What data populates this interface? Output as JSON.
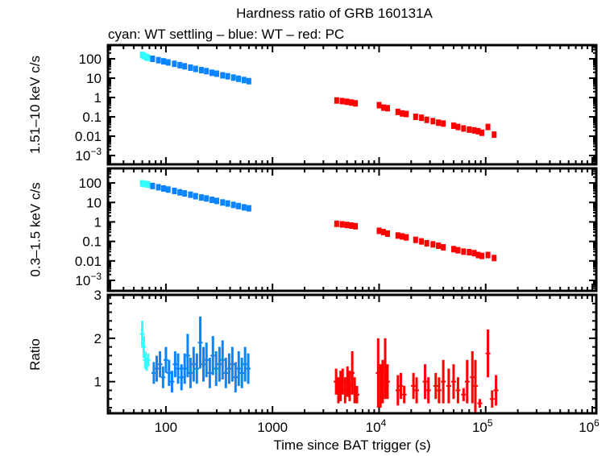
{
  "chart_data": {
    "type": "scatter",
    "title": "Hardness ratio of GRB 160131A",
    "subtitle": "cyan: WT settling – blue: WT – red: PC",
    "xlabel": "Time since BAT trigger (s)",
    "xscale": "log",
    "xlim": [
      28.6,
      1090000
    ],
    "x_tick_labels": [
      {
        "value": 100,
        "base": "100",
        "exp": ""
      },
      {
        "value": 1000,
        "base": "1000",
        "exp": ""
      },
      {
        "value": 10000,
        "base": "10",
        "exp": "4"
      },
      {
        "value": 100000,
        "base": "10",
        "exp": "5"
      },
      {
        "value": 1000000,
        "base": "10",
        "exp": "6"
      }
    ],
    "colors": {
      "wt_settling": "#33ffff",
      "wt": "#0a84ff",
      "pc": "#ff0000"
    },
    "panels": [
      {
        "name": "hard",
        "ylabel": "1.51–10 keV c/s",
        "yscale": "log",
        "ylim": [
          0.00035,
          510
        ],
        "y_tick_labels": [
          {
            "value": 100,
            "base": "100",
            "exp": ""
          },
          {
            "value": 10,
            "base": "10",
            "exp": ""
          },
          {
            "value": 1,
            "base": "1",
            "exp": ""
          },
          {
            "value": 0.1,
            "base": "0.1",
            "exp": ""
          },
          {
            "value": 0.01,
            "base": "0.01",
            "exp": ""
          },
          {
            "value": 0.001,
            "base": "10",
            "exp": "−3"
          }
        ],
        "series": [
          {
            "name": "WT settling",
            "color_key": "wt_settling",
            "points": [
              [
                60,
                160
              ],
              [
                62,
                145
              ],
              [
                64,
                130
              ],
              [
                66,
                120
              ],
              [
                68,
                112
              ]
            ]
          },
          {
            "name": "WT",
            "color_key": "wt",
            "points": [
              [
                75,
                100
              ],
              [
                85,
                85
              ],
              [
                95,
                74
              ],
              [
                105,
                65
              ],
              [
                120,
                55
              ],
              [
                135,
                47
              ],
              [
                150,
                41
              ],
              [
                170,
                35
              ],
              [
                190,
                30
              ],
              [
                215,
                26
              ],
              [
                240,
                23
              ],
              [
                270,
                19
              ],
              [
                300,
                17
              ],
              [
                340,
                14
              ],
              [
                380,
                12.5
              ],
              [
                430,
                10.7
              ],
              [
                480,
                9.3
              ],
              [
                540,
                8
              ],
              [
                600,
                7
              ]
            ]
          },
          {
            "name": "PC",
            "color_key": "pc",
            "points": [
              [
                4000,
                0.7
              ],
              [
                4500,
                0.65
              ],
              [
                5000,
                0.6
              ],
              [
                5500,
                0.55
              ],
              [
                6000,
                0.5
              ],
              [
                10000,
                0.4
              ],
              [
                11000,
                0.3
              ],
              [
                12000,
                0.28
              ],
              [
                15000,
                0.18
              ],
              [
                16500,
                0.15
              ],
              [
                18000,
                0.14
              ],
              [
                22000,
                0.1
              ],
              [
                25000,
                0.09
              ],
              [
                28000,
                0.07
              ],
              [
                32000,
                0.06
              ],
              [
                36000,
                0.05
              ],
              [
                40000,
                0.045
              ],
              [
                50000,
                0.035
              ],
              [
                55000,
                0.03
              ],
              [
                62000,
                0.025
              ],
              [
                70000,
                0.022
              ],
              [
                78000,
                0.02
              ],
              [
                85000,
                0.018
              ],
              [
                92000,
                0.015
              ],
              [
                105000,
                0.03
              ],
              [
                120000,
                0.012
              ]
            ]
          }
        ]
      },
      {
        "name": "soft",
        "ylabel": "0.3–1.5 keV c/s",
        "yscale": "log",
        "ylim": [
          0.00029,
          560
        ],
        "y_tick_labels": [
          {
            "value": 100,
            "base": "100",
            "exp": ""
          },
          {
            "value": 10,
            "base": "10",
            "exp": ""
          },
          {
            "value": 1,
            "base": "1",
            "exp": ""
          },
          {
            "value": 0.1,
            "base": "0.1",
            "exp": ""
          },
          {
            "value": 0.01,
            "base": "0.01",
            "exp": ""
          },
          {
            "value": 0.001,
            "base": "10",
            "exp": "−3"
          }
        ],
        "series": [
          {
            "name": "WT settling",
            "color_key": "wt_settling",
            "points": [
              [
                60,
                95
              ],
              [
                62,
                90
              ],
              [
                64,
                88
              ],
              [
                66,
                85
              ],
              [
                68,
                82
              ]
            ]
          },
          {
            "name": "WT",
            "color_key": "wt",
            "points": [
              [
                75,
                70
              ],
              [
                85,
                60
              ],
              [
                95,
                52
              ],
              [
                105,
                46
              ],
              [
                120,
                39
              ],
              [
                135,
                33
              ],
              [
                150,
                29
              ],
              [
                170,
                25
              ],
              [
                190,
                21
              ],
              [
                215,
                18
              ],
              [
                240,
                16
              ],
              [
                270,
                13.6
              ],
              [
                300,
                12
              ],
              [
                340,
                10
              ],
              [
                380,
                8.8
              ],
              [
                430,
                7.5
              ],
              [
                480,
                6.5
              ],
              [
                540,
                5.6
              ],
              [
                600,
                5
              ]
            ]
          },
          {
            "name": "PC",
            "color_key": "pc",
            "points": [
              [
                4000,
                0.8
              ],
              [
                4500,
                0.75
              ],
              [
                5000,
                0.7
              ],
              [
                5500,
                0.65
              ],
              [
                6000,
                0.6
              ],
              [
                10000,
                0.35
              ],
              [
                11000,
                0.3
              ],
              [
                12000,
                0.25
              ],
              [
                15000,
                0.2
              ],
              [
                16500,
                0.18
              ],
              [
                18000,
                0.16
              ],
              [
                22000,
                0.12
              ],
              [
                25000,
                0.1
              ],
              [
                28000,
                0.08
              ],
              [
                32000,
                0.07
              ],
              [
                36000,
                0.06
              ],
              [
                40000,
                0.05
              ],
              [
                50000,
                0.04
              ],
              [
                55000,
                0.035
              ],
              [
                62000,
                0.03
              ],
              [
                70000,
                0.028
              ],
              [
                78000,
                0.025
              ],
              [
                85000,
                0.02
              ],
              [
                92000,
                0.018
              ],
              [
                105000,
                0.02
              ],
              [
                120000,
                0.014
              ]
            ]
          }
        ]
      },
      {
        "name": "ratio",
        "ylabel": "Ratio",
        "yscale": "linear",
        "ylim": [
          0.27,
          3
        ],
        "y_tick_labels": [
          {
            "value": 3,
            "base": "3",
            "exp": ""
          },
          {
            "value": 2,
            "base": "2",
            "exp": ""
          },
          {
            "value": 1,
            "base": "1",
            "exp": ""
          }
        ],
        "series": [
          {
            "name": "WT settling",
            "color_key": "wt_settling",
            "points": [
              [
                60,
                2.1,
                0.3
              ],
              [
                62,
                1.8,
                0.25
              ],
              [
                64,
                1.5,
                0.2
              ],
              [
                66,
                1.4,
                0.15
              ],
              [
                68,
                1.5,
                0.15
              ]
            ]
          },
          {
            "name": "WT",
            "color_key": "wt",
            "points": [
              [
                77,
                1.2,
                0.25
              ],
              [
                82,
                1.3,
                0.3
              ],
              [
                88,
                1.4,
                0.3
              ],
              [
                94,
                1.1,
                0.25
              ],
              [
                100,
                1.5,
                0.3
              ],
              [
                107,
                1.2,
                0.3
              ],
              [
                114,
                1.0,
                0.25
              ],
              [
                122,
                1.4,
                0.3
              ],
              [
                130,
                1.3,
                0.35
              ],
              [
                140,
                1.1,
                0.3
              ],
              [
                150,
                1.3,
                0.35
              ],
              [
                160,
                1.6,
                0.5
              ],
              [
                170,
                1.2,
                0.35
              ],
              [
                182,
                1.4,
                0.4
              ],
              [
                195,
                1.3,
                0.35
              ],
              [
                210,
                1.9,
                0.6
              ],
              [
                225,
                1.4,
                0.4
              ],
              [
                240,
                1.5,
                0.4
              ],
              [
                258,
                1.2,
                0.35
              ],
              [
                276,
                1.6,
                0.45
              ],
              [
                296,
                1.3,
                0.4
              ],
              [
                318,
                1.4,
                0.4
              ],
              [
                340,
                1.5,
                0.45
              ],
              [
                365,
                1.2,
                0.35
              ],
              [
                392,
                1.3,
                0.35
              ],
              [
                420,
                1.4,
                0.4
              ],
              [
                450,
                1.1,
                0.35
              ],
              [
                482,
                1.3,
                0.4
              ],
              [
                516,
                1.2,
                0.35
              ],
              [
                553,
                1.4,
                0.4
              ],
              [
                592,
                1.3,
                0.35
              ]
            ]
          },
          {
            "name": "PC",
            "color_key": "pc",
            "points": [
              [
                3950,
                1.0,
                0.3
              ],
              [
                4150,
                0.8,
                0.3
              ],
              [
                4350,
                0.9,
                0.35
              ],
              [
                4550,
                1.0,
                0.3
              ],
              [
                4800,
                0.8,
                0.3
              ],
              [
                5050,
                1.0,
                0.35
              ],
              [
                5300,
                0.9,
                0.35
              ],
              [
                5600,
                1.2,
                0.5
              ],
              [
                5900,
                0.8,
                0.3
              ],
              [
                6200,
                0.7,
                0.2
              ],
              [
                9800,
                1.2,
                0.8
              ],
              [
                10300,
                0.9,
                0.5
              ],
              [
                10800,
                1.0,
                0.5
              ],
              [
                11400,
                1.3,
                0.7
              ],
              [
                12000,
                1.0,
                0.4
              ],
              [
                15000,
                0.8,
                0.35
              ],
              [
                16000,
                0.9,
                0.3
              ],
              [
                17200,
                0.7,
                0.2
              ],
              [
                21000,
                0.9,
                0.3
              ],
              [
                22500,
                0.8,
                0.3
              ],
              [
                27000,
                1.0,
                0.4
              ],
              [
                29000,
                0.8,
                0.3
              ],
              [
                34000,
                0.9,
                0.3
              ],
              [
                36500,
                0.8,
                0.3
              ],
              [
                40000,
                1.0,
                0.5
              ],
              [
                45000,
                0.9,
                0.4
              ],
              [
                50000,
                1.0,
                0.4
              ],
              [
                55000,
                0.8,
                0.3
              ],
              [
                62000,
                0.7,
                0.15
              ],
              [
                67000,
                1.0,
                0.5
              ],
              [
                75000,
                1.1,
                0.6
              ],
              [
                80000,
                0.9,
                0.6
              ],
              [
                88000,
                0.5,
                0.1
              ],
              [
                105000,
                1.65,
                0.55
              ],
              [
                115000,
                0.6,
                0.2
              ],
              [
                125000,
                0.8,
                0.35
              ]
            ]
          }
        ]
      }
    ]
  }
}
